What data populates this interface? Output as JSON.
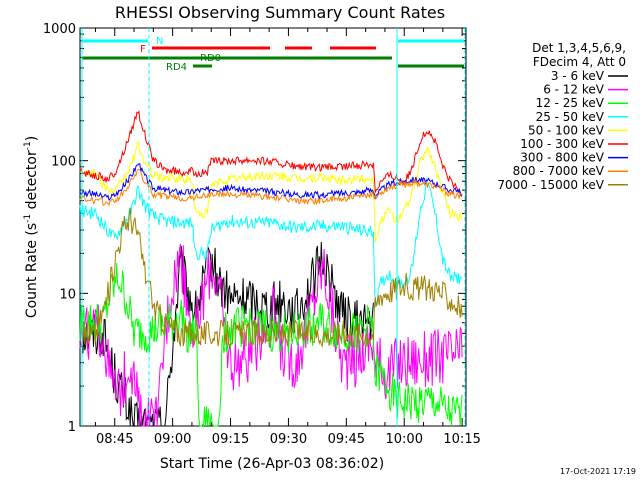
{
  "chart_data": {
    "type": "line",
    "title": "RHESSI Observing Summary Count Rates",
    "xlabel": "Start Time (26-Apr-03 08:36:02)",
    "ylabel_main": "Count Rate (s",
    "ylabel_exp1": "-1",
    "ylabel_mid": " detector",
    "ylabel_exp2": "-1",
    "ylabel_end": ")",
    "yscale": "log",
    "xlim_min": [
      36,
      136
    ],
    "ylim": [
      1,
      1000
    ],
    "x_ticks": [
      {
        "t": 45,
        "label": "08:45"
      },
      {
        "t": 60,
        "label": "09:00"
      },
      {
        "t": 75,
        "label": "09:15"
      },
      {
        "t": 90,
        "label": "09:30"
      },
      {
        "t": 105,
        "label": "09:45"
      },
      {
        "t": 120,
        "label": "10:00"
      },
      {
        "t": 135,
        "label": "10:15"
      }
    ],
    "y_ticks": [
      {
        "v": 1,
        "label": "1"
      },
      {
        "v": 10,
        "label": "10"
      },
      {
        "v": 100,
        "label": "100"
      },
      {
        "v": 1000,
        "label": "1000"
      }
    ],
    "legend_header": [
      "Det 1,3,4,5,6,9,",
      "FDecim 4, Att 0"
    ],
    "series": [
      {
        "name": "3 - 6 keV",
        "color": "#000000",
        "points": [
          [
            36,
            5
          ],
          [
            42,
            5
          ],
          [
            44,
            3
          ],
          [
            46,
            2
          ],
          [
            48,
            1.5
          ],
          [
            50,
            1
          ],
          [
            54,
            1
          ],
          [
            58,
            1
          ],
          [
            61,
            8
          ],
          [
            62,
            16
          ],
          [
            64,
            10
          ],
          [
            66,
            7
          ],
          [
            68,
            12
          ],
          [
            70,
            18
          ],
          [
            72,
            12
          ],
          [
            75,
            9
          ],
          [
            80,
            9
          ],
          [
            85,
            8
          ],
          [
            88,
            9
          ],
          [
            92,
            7
          ],
          [
            96,
            12
          ],
          [
            99,
            19
          ],
          [
            101,
            12
          ],
          [
            104,
            7
          ],
          [
            107,
            6
          ],
          [
            110,
            6
          ],
          [
            112,
            6
          ]
        ]
      },
      {
        "name": "6 - 12 keV",
        "color": "#ff00ff",
        "points": [
          [
            36,
            5
          ],
          [
            42,
            5
          ],
          [
            44,
            2
          ],
          [
            46,
            1.8
          ],
          [
            48,
            2.5
          ],
          [
            49,
            3.5
          ],
          [
            52,
            1
          ],
          [
            56,
            1
          ],
          [
            58,
            5
          ],
          [
            60,
            12
          ],
          [
            62,
            20
          ],
          [
            64,
            8
          ],
          [
            66,
            5
          ],
          [
            68,
            10
          ],
          [
            70,
            17
          ],
          [
            72,
            11
          ],
          [
            75,
            3
          ],
          [
            80,
            3.5
          ],
          [
            86,
            7
          ],
          [
            88,
            4
          ],
          [
            92,
            3
          ],
          [
            96,
            8
          ],
          [
            99,
            17
          ],
          [
            101,
            8
          ],
          [
            104,
            3
          ],
          [
            107,
            3
          ],
          [
            110,
            4
          ],
          [
            112,
            4.5
          ],
          [
            112.5,
            2.5
          ],
          [
            113,
            3
          ],
          [
            116,
            2.5
          ],
          [
            118,
            3
          ],
          [
            132,
            3.5
          ],
          [
            135,
            3.5
          ]
        ]
      },
      {
        "name": "12 - 25 keV",
        "color": "#00ff00",
        "points": [
          [
            36,
            6
          ],
          [
            42,
            6
          ],
          [
            44,
            10
          ],
          [
            46,
            13
          ],
          [
            48,
            9
          ],
          [
            50,
            5
          ],
          [
            54,
            5
          ],
          [
            60,
            6
          ],
          [
            62,
            7
          ],
          [
            64,
            5
          ],
          [
            66,
            5
          ],
          [
            67,
            1
          ],
          [
            72,
            1
          ],
          [
            73,
            5
          ],
          [
            80,
            6
          ],
          [
            86,
            5
          ],
          [
            92,
            5
          ],
          [
            98,
            6
          ],
          [
            104,
            5
          ],
          [
            108,
            5
          ],
          [
            112,
            6
          ],
          [
            112.5,
            2
          ],
          [
            113,
            2.5
          ],
          [
            116,
            2
          ],
          [
            118,
            1.5
          ],
          [
            120,
            1.5
          ],
          [
            124,
            1.5
          ],
          [
            128,
            1.5
          ],
          [
            132,
            1.2
          ],
          [
            135,
            1.2
          ]
        ]
      },
      {
        "name": "25 - 50 keV",
        "color": "#00ffff",
        "points": [
          [
            36,
            42
          ],
          [
            40,
            40
          ],
          [
            43,
            30
          ],
          [
            45,
            26
          ],
          [
            47,
            32
          ],
          [
            49,
            40
          ],
          [
            51,
            60
          ],
          [
            53,
            45
          ],
          [
            55,
            38
          ],
          [
            58,
            35
          ],
          [
            62,
            34
          ],
          [
            65,
            34
          ],
          [
            66,
            20
          ],
          [
            69,
            20
          ],
          [
            70,
            30
          ],
          [
            74,
            35
          ],
          [
            80,
            34
          ],
          [
            86,
            34
          ],
          [
            92,
            31
          ],
          [
            98,
            32
          ],
          [
            104,
            32
          ],
          [
            108,
            30
          ],
          [
            112,
            29
          ],
          [
            112.5,
            8
          ],
          [
            114,
            12
          ],
          [
            116,
            14
          ],
          [
            118,
            12
          ],
          [
            120,
            12
          ],
          [
            122,
            15
          ],
          [
            124,
            40
          ],
          [
            126,
            70
          ],
          [
            128,
            40
          ],
          [
            130,
            18
          ],
          [
            132,
            13
          ],
          [
            134,
            13
          ],
          [
            135,
            13
          ]
        ]
      },
      {
        "name": "50 - 100 keV",
        "color": "#ffff00",
        "points": [
          [
            36,
            85
          ],
          [
            40,
            80
          ],
          [
            43,
            60
          ],
          [
            45,
            58
          ],
          [
            47,
            70
          ],
          [
            49,
            90
          ],
          [
            51,
            130
          ],
          [
            53,
            95
          ],
          [
            55,
            78
          ],
          [
            58,
            74
          ],
          [
            62,
            72
          ],
          [
            65,
            72
          ],
          [
            66,
            40
          ],
          [
            69,
            40
          ],
          [
            70,
            65
          ],
          [
            74,
            72
          ],
          [
            80,
            76
          ],
          [
            86,
            77
          ],
          [
            92,
            73
          ],
          [
            98,
            74
          ],
          [
            104,
            71
          ],
          [
            108,
            73
          ],
          [
            112,
            74
          ],
          [
            112.5,
            25
          ],
          [
            114,
            35
          ],
          [
            116,
            42
          ],
          [
            118,
            35
          ],
          [
            120,
            42
          ],
          [
            122,
            55
          ],
          [
            124,
            95
          ],
          [
            126,
            125
          ],
          [
            128,
            90
          ],
          [
            130,
            55
          ],
          [
            132,
            40
          ],
          [
            134,
            38
          ],
          [
            135,
            38
          ]
        ]
      },
      {
        "name": "100 - 300 keV",
        "color": "#ff0000",
        "points": [
          [
            36,
            82
          ],
          [
            40,
            78
          ],
          [
            43,
            72
          ],
          [
            45,
            80
          ],
          [
            47,
            110
          ],
          [
            49,
            160
          ],
          [
            51,
            240
          ],
          [
            53,
            150
          ],
          [
            55,
            100
          ],
          [
            58,
            85
          ],
          [
            62,
            82
          ],
          [
            65,
            83
          ],
          [
            66,
            80
          ],
          [
            69,
            82
          ],
          [
            70,
            98
          ],
          [
            74,
            100
          ],
          [
            80,
            102
          ],
          [
            86,
            98
          ],
          [
            92,
            90
          ],
          [
            98,
            88
          ],
          [
            104,
            90
          ],
          [
            108,
            92
          ],
          [
            112,
            95
          ],
          [
            112.5,
            60
          ],
          [
            114,
            70
          ],
          [
            116,
            78
          ],
          [
            118,
            75
          ],
          [
            120,
            70
          ],
          [
            122,
            85
          ],
          [
            124,
            140
          ],
          [
            126,
            170
          ],
          [
            128,
            140
          ],
          [
            130,
            90
          ],
          [
            132,
            70
          ],
          [
            134,
            60
          ],
          [
            135,
            55
          ]
        ]
      },
      {
        "name": "300 - 800 keV",
        "color": "#0000ff",
        "points": [
          [
            36,
            58
          ],
          [
            40,
            56
          ],
          [
            43,
            52
          ],
          [
            45,
            55
          ],
          [
            47,
            62
          ],
          [
            49,
            75
          ],
          [
            51,
            95
          ],
          [
            53,
            75
          ],
          [
            55,
            62
          ],
          [
            58,
            60
          ],
          [
            62,
            58
          ],
          [
            65,
            58
          ],
          [
            66,
            60
          ],
          [
            69,
            60
          ],
          [
            70,
            62
          ],
          [
            74,
            62
          ],
          [
            80,
            60
          ],
          [
            86,
            58
          ],
          [
            92,
            56
          ],
          [
            98,
            55
          ],
          [
            104,
            57
          ],
          [
            108,
            58
          ],
          [
            112,
            60
          ],
          [
            112.5,
            55
          ],
          [
            114,
            60
          ],
          [
            116,
            66
          ],
          [
            118,
            68
          ],
          [
            120,
            70
          ],
          [
            122,
            72
          ],
          [
            124,
            72
          ],
          [
            126,
            70
          ],
          [
            128,
            68
          ],
          [
            130,
            64
          ],
          [
            132,
            60
          ],
          [
            134,
            58
          ],
          [
            135,
            58
          ]
        ]
      },
      {
        "name": "800 - 7000 keV",
        "color": "#ff8000",
        "points": [
          [
            36,
            52
          ],
          [
            40,
            50
          ],
          [
            43,
            48
          ],
          [
            45,
            50
          ],
          [
            47,
            56
          ],
          [
            49,
            68
          ],
          [
            51,
            86
          ],
          [
            53,
            68
          ],
          [
            55,
            56
          ],
          [
            58,
            54
          ],
          [
            62,
            52
          ],
          [
            65,
            52
          ],
          [
            66,
            54
          ],
          [
            69,
            54
          ],
          [
            70,
            56
          ],
          [
            74,
            56
          ],
          [
            80,
            55
          ],
          [
            86,
            53
          ],
          [
            92,
            50
          ],
          [
            98,
            50
          ],
          [
            104,
            52
          ],
          [
            108,
            53
          ],
          [
            112,
            55
          ],
          [
            112.5,
            52
          ],
          [
            114,
            58
          ],
          [
            116,
            63
          ],
          [
            118,
            65
          ],
          [
            120,
            66
          ],
          [
            122,
            68
          ],
          [
            124,
            68
          ],
          [
            126,
            66
          ],
          [
            128,
            64
          ],
          [
            130,
            60
          ],
          [
            132,
            56
          ],
          [
            134,
            54
          ],
          [
            135,
            54
          ]
        ]
      },
      {
        "name": "7000 - 15000 keV",
        "color": "#a08000",
        "points": [
          [
            36,
            5
          ],
          [
            40,
            5
          ],
          [
            43,
            9
          ],
          [
            45,
            18
          ],
          [
            47,
            30
          ],
          [
            49,
            38
          ],
          [
            51,
            28
          ],
          [
            53,
            14
          ],
          [
            55,
            8
          ],
          [
            58,
            6
          ],
          [
            62,
            5
          ],
          [
            66,
            5
          ],
          [
            70,
            5
          ],
          [
            80,
            5
          ],
          [
            90,
            5
          ],
          [
            100,
            5
          ],
          [
            108,
            5
          ],
          [
            112,
            5
          ],
          [
            112.5,
            8
          ],
          [
            114,
            10
          ],
          [
            116,
            10.5
          ],
          [
            118,
            11
          ],
          [
            120,
            11.5
          ],
          [
            122,
            11
          ],
          [
            124,
            11
          ],
          [
            126,
            11
          ],
          [
            128,
            11
          ],
          [
            130,
            10
          ],
          [
            132,
            9
          ],
          [
            134,
            8
          ],
          [
            135,
            7.5
          ]
        ]
      }
    ],
    "attenuator_bar": {
      "label": "F",
      "color": "#ff0000"
    },
    "night_bar": {
      "label": "N",
      "color": "#00ffff"
    },
    "decim_bar_labels": {
      "rd4": "RD4",
      "rd0": "RD0"
    },
    "decim_color": "#008000",
    "timestamp": "17-Oct-2021 17:19"
  }
}
